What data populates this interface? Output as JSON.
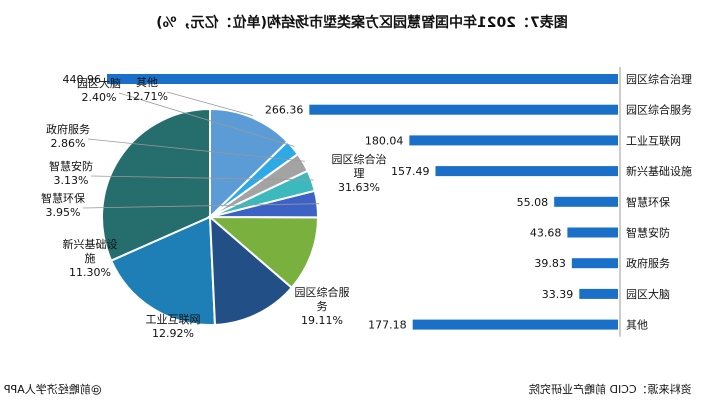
{
  "title": "图表7：2021年中国智慧园区方案类型市场结构(单位：亿元，%)",
  "footer": {
    "source": "资料来源：CCID 前瞻产业研究院",
    "brand": "@前瞻经济学人APP"
  },
  "colors": {
    "bar": "#1a6fc8",
    "pie": [
      "#266e6e",
      "#1e7fb7",
      "#224f86",
      "#7ab03e",
      "#3c62c6",
      "#3cb9bd",
      "#a3a3a3",
      "#2da9e6",
      "#5b9bd6"
    ]
  },
  "chart_data": [
    {
      "type": "bar",
      "orientation": "horizontal",
      "categories": [
        "园区综合治理",
        "园区综合服务",
        "工业互联网",
        "新兴基础设施",
        "智慧环保",
        "智慧安防",
        "政府服务",
        "园区大脑",
        "其他"
      ],
      "values": [
        440.96,
        266.36,
        180.04,
        157.49,
        55.08,
        43.68,
        39.83,
        33.39,
        177.18
      ],
      "value_labels": [
        "440.96",
        "266.36",
        "180.04",
        "157.49",
        "55.08",
        "43.68",
        "39.83",
        "33.39",
        "177.18"
      ],
      "xlim": [
        0,
        440.96
      ]
    },
    {
      "type": "pie",
      "categories": [
        "园区综合治理",
        "园区综合服务",
        "工业互联网",
        "新兴基础设施",
        "智慧环保",
        "智慧安防",
        "政府服务",
        "园区大脑",
        "其他"
      ],
      "values": [
        31.63,
        19.11,
        12.92,
        11.3,
        3.95,
        3.13,
        2.86,
        2.4,
        12.71
      ],
      "value_labels": [
        "31.63%",
        "19.11%",
        "12.92%",
        "11.30%",
        "3.95%",
        "3.13%",
        "2.86%",
        "2.40%",
        "12.71%"
      ],
      "slice_labels": [
        [
          "园区综合治",
          "理",
          "31.63%"
        ],
        [
          "园区综合服",
          "务",
          "19.11%"
        ],
        [
          "工业互联网",
          "12.92%"
        ],
        [
          "新兴基础设",
          "施",
          "11.30%"
        ],
        [
          "智慧环保",
          "3.95%"
        ],
        [
          "智慧安防",
          "3.13%"
        ],
        [
          "政府服务",
          "2.86%"
        ],
        [
          "园区大脑",
          "2.40%"
        ],
        [
          "其他",
          "12.71%"
        ]
      ]
    }
  ]
}
